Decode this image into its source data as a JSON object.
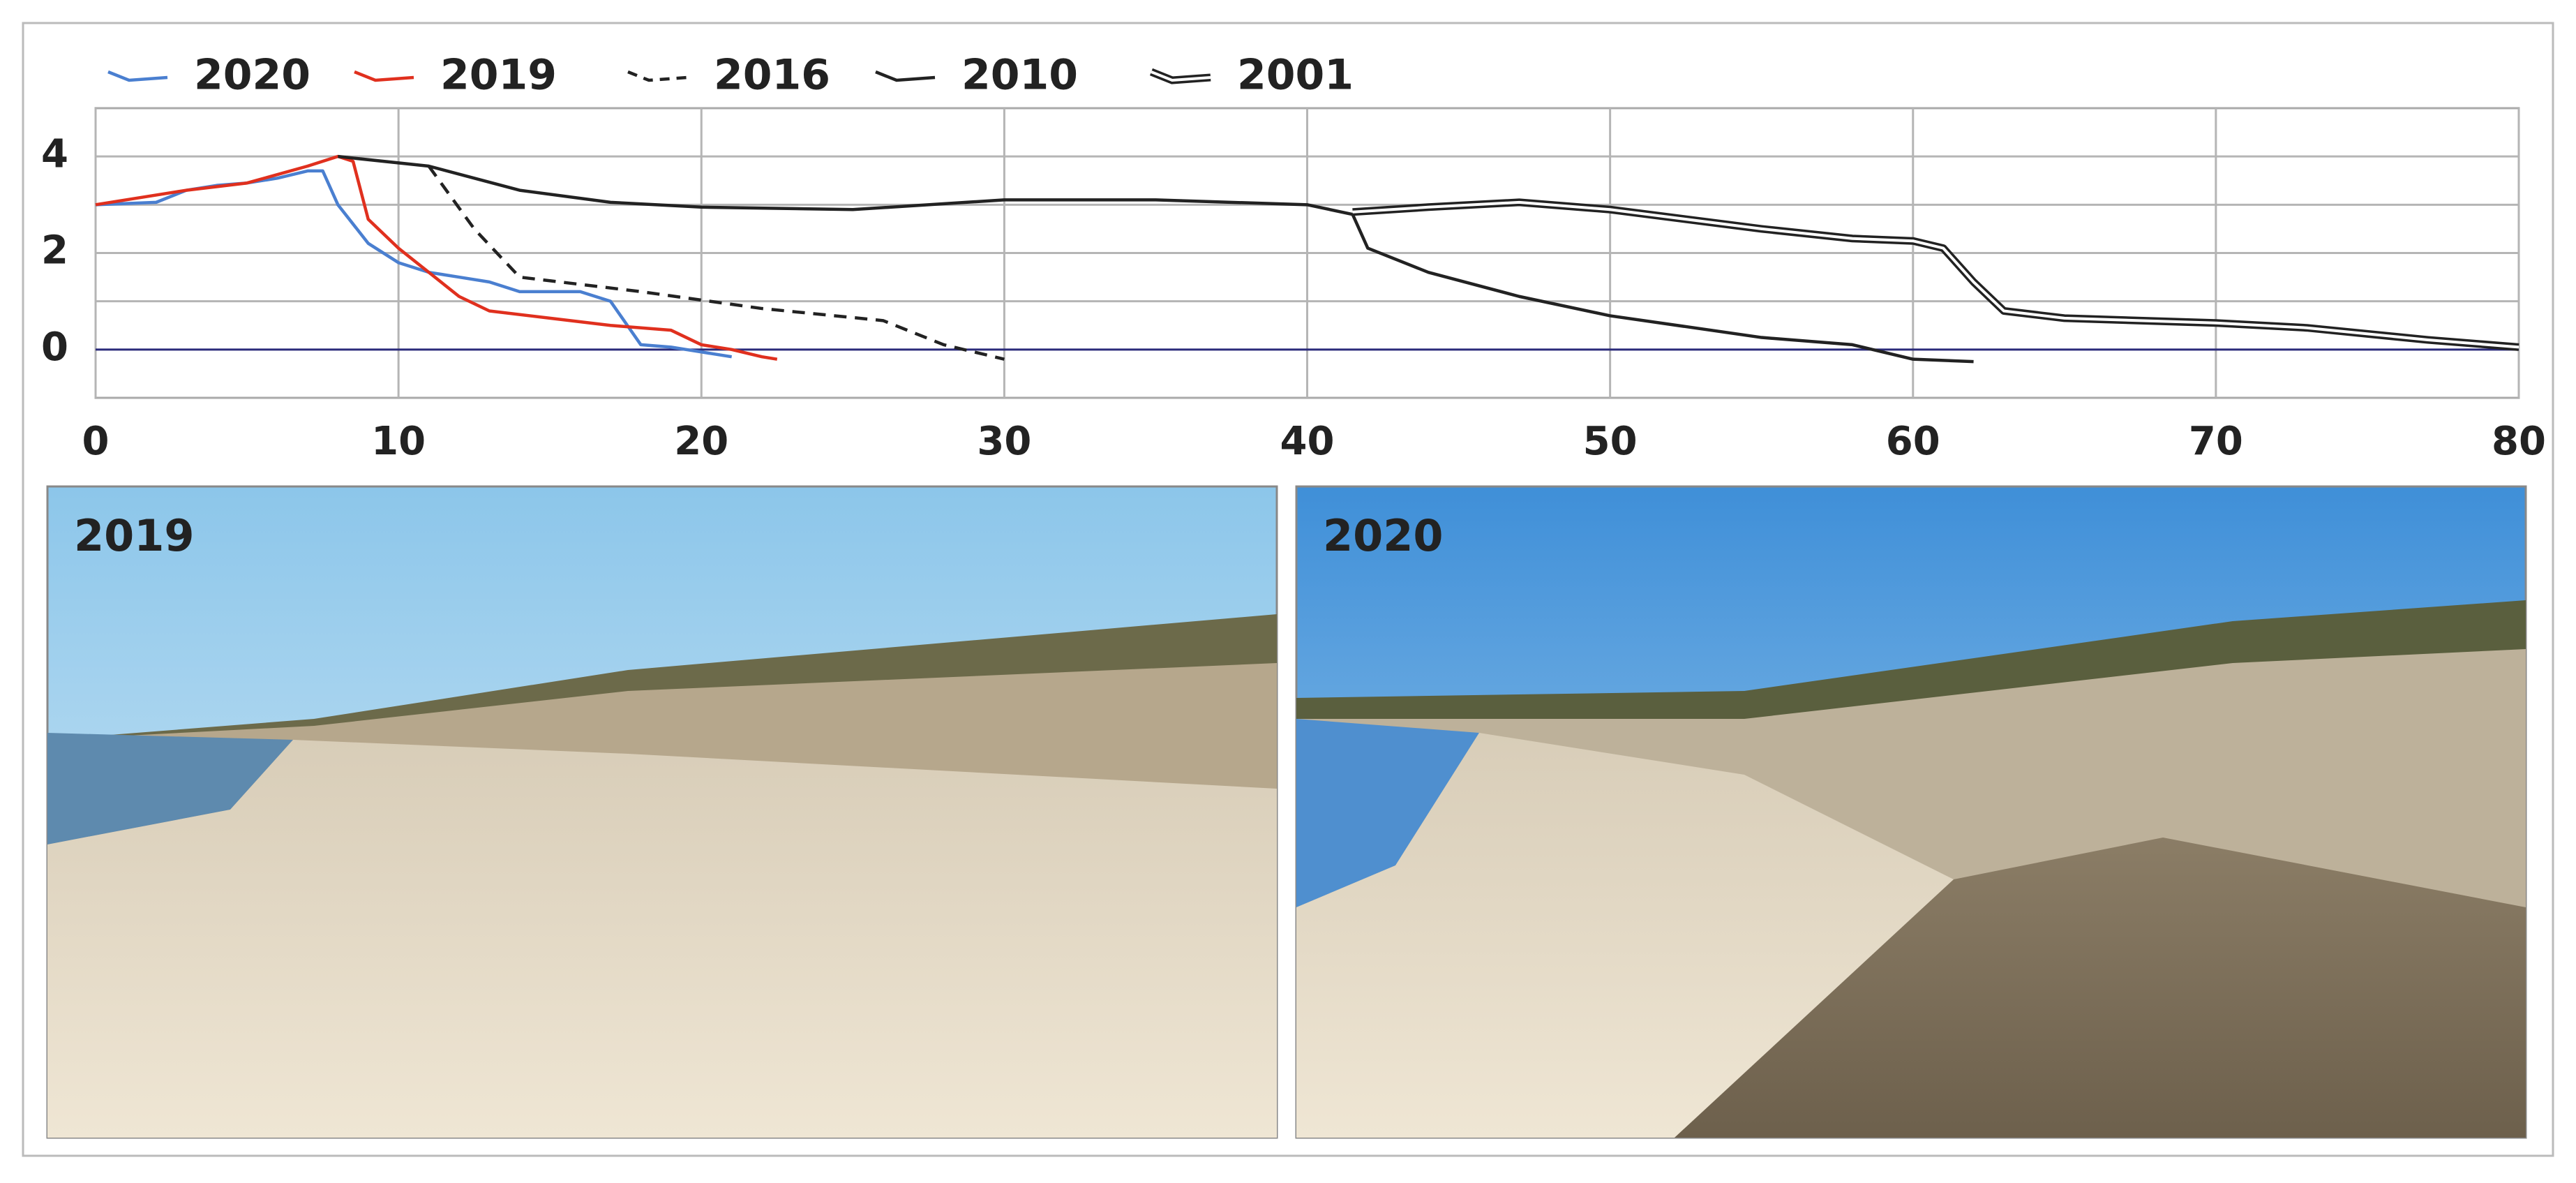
{
  "chart_data": {
    "type": "line",
    "xlim": [
      0,
      80
    ],
    "xticks": [
      0,
      10,
      20,
      30,
      40,
      50,
      60,
      70,
      80
    ],
    "ylim": [
      -1,
      5
    ],
    "yticks": [
      0,
      2,
      4
    ],
    "y_minor_ticks": [
      1,
      3
    ],
    "grid": true,
    "zero_line_color": "#2a2a7a",
    "series": [
      {
        "name": "2020",
        "color": "#4a7fd0",
        "style": "solid",
        "x": [
          0,
          2,
          3,
          4,
          5,
          6,
          7,
          7.5,
          8,
          9,
          10,
          11,
          12,
          13,
          14,
          15,
          16,
          17,
          18,
          19,
          20,
          21
        ],
        "values": [
          3,
          3.05,
          3.3,
          3.4,
          3.45,
          3.55,
          3.7,
          3.7,
          3.0,
          2.2,
          1.8,
          1.6,
          1.5,
          1.4,
          1.2,
          1.2,
          1.2,
          1.0,
          0.1,
          0.05,
          -0.05,
          -0.15
        ]
      },
      {
        "name": "2019",
        "color": "#e0301e",
        "style": "solid",
        "x": [
          0,
          3,
          5,
          7,
          8,
          8.5,
          9,
          10,
          11,
          12,
          13,
          15,
          17,
          19,
          20,
          21,
          22,
          22.5
        ],
        "values": [
          3,
          3.3,
          3.45,
          3.8,
          4.0,
          3.9,
          2.7,
          2.1,
          1.6,
          1.1,
          0.8,
          0.65,
          0.5,
          0.4,
          0.1,
          0,
          -0.15,
          -0.2
        ]
      },
      {
        "name": "2016",
        "color": "#222222",
        "style": "dashed",
        "x": [
          11,
          12.5,
          14,
          18,
          22,
          26,
          28,
          30
        ],
        "values": [
          3.8,
          2.5,
          1.5,
          1.2,
          0.85,
          0.6,
          0.1,
          -0.2
        ]
      },
      {
        "name": "2010",
        "color": "#222222",
        "style": "solid",
        "x": [
          8,
          11,
          14,
          17,
          20,
          25,
          30,
          35,
          40,
          41.5,
          42,
          44,
          47,
          50,
          55,
          58,
          60,
          62
        ],
        "values": [
          4,
          3.8,
          3.3,
          3.05,
          2.95,
          2.9,
          3.1,
          3.1,
          3.0,
          2.8,
          2.1,
          1.6,
          1.1,
          0.7,
          0.25,
          0.1,
          -0.2,
          -0.25
        ]
      },
      {
        "name": "2001",
        "color": "#222222",
        "style": "double",
        "x": [
          41.5,
          44,
          47,
          50,
          55,
          58,
          60,
          61,
          62,
          63,
          65,
          70,
          73,
          77,
          80
        ],
        "values": [
          2.85,
          2.95,
          3.05,
          2.9,
          2.5,
          2.3,
          2.25,
          2.1,
          1.4,
          0.8,
          0.65,
          0.55,
          0.45,
          0.2,
          0.05
        ]
      }
    ]
  },
  "photos": [
    {
      "label": "2019"
    },
    {
      "label": "2020"
    }
  ]
}
